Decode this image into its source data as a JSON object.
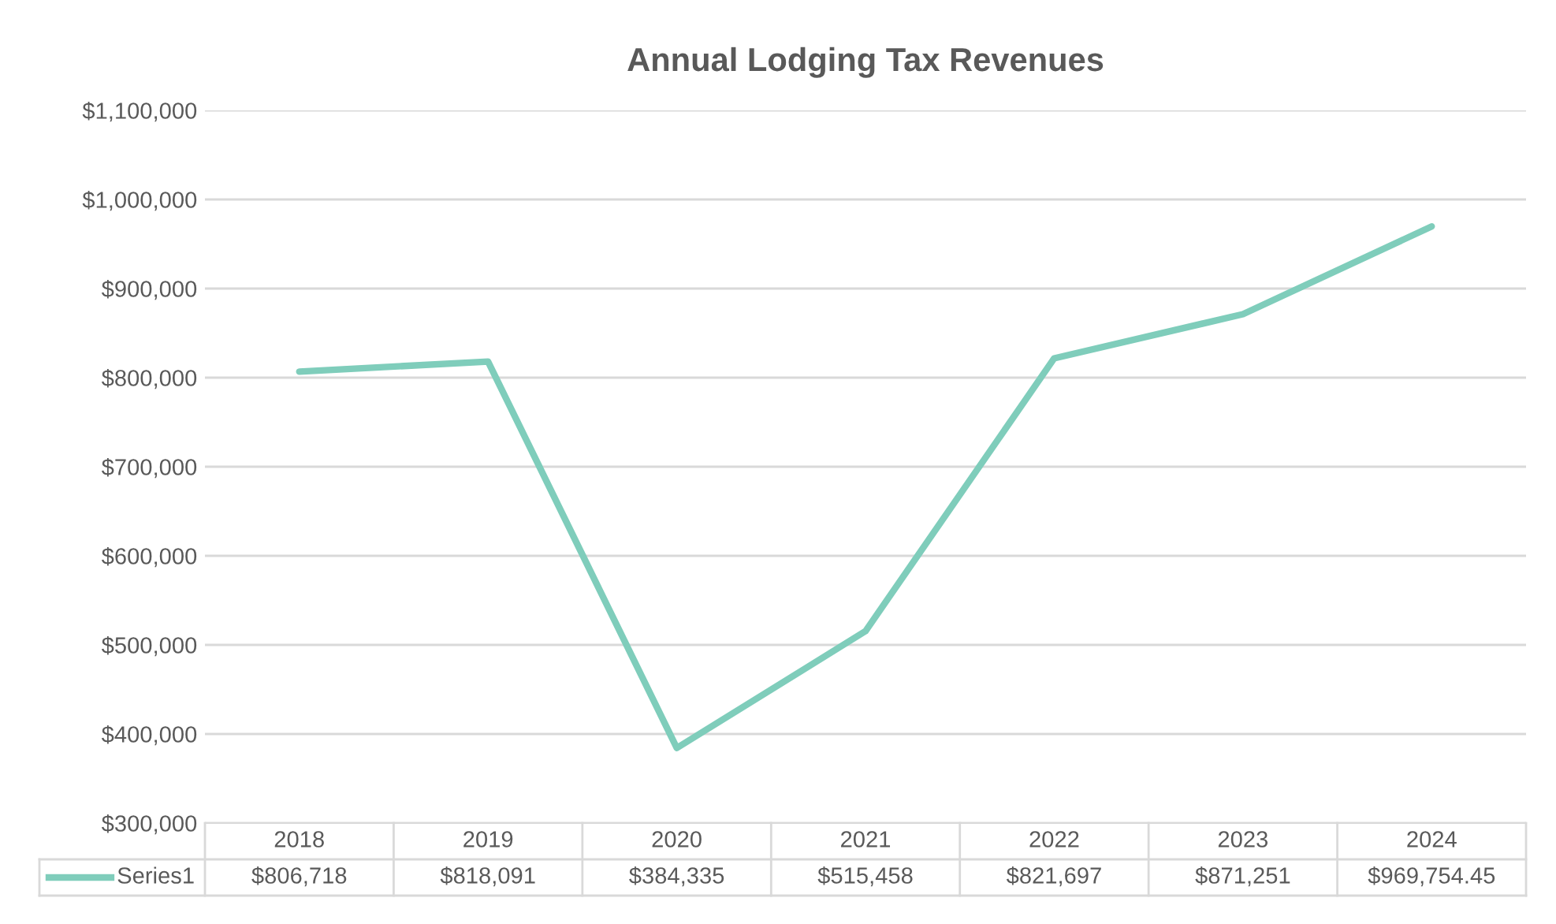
{
  "chart_data": {
    "type": "line",
    "title": "Annual Lodging Tax Revenues",
    "categories": [
      "2018",
      "2019",
      "2020",
      "2021",
      "2022",
      "2023",
      "2024"
    ],
    "series": [
      {
        "name": "Series1",
        "color": "#7fcdbb",
        "values": [
          806718,
          818091,
          384335,
          515458,
          821697,
          871251,
          969754.45
        ],
        "value_labels": [
          "$806,718",
          "$818,091",
          "$384,335",
          "$515,458",
          "$821,697",
          "$871,251",
          "$969,754.45"
        ]
      }
    ],
    "ylim": [
      300000,
      1100000
    ],
    "yticks": [
      {
        "value": 300000,
        "label": "$300,000"
      },
      {
        "value": 400000,
        "label": "$400,000"
      },
      {
        "value": 500000,
        "label": "$500,000"
      },
      {
        "value": 600000,
        "label": "$600,000"
      },
      {
        "value": 700000,
        "label": "$700,000"
      },
      {
        "value": 800000,
        "label": "$800,000"
      },
      {
        "value": 900000,
        "label": "$900,000"
      },
      {
        "value": 1000000,
        "label": "$1,000,000"
      },
      {
        "value": 1100000,
        "label": "$1,100,000"
      }
    ],
    "grid": "y",
    "marker": "none",
    "line_style": "solid"
  }
}
